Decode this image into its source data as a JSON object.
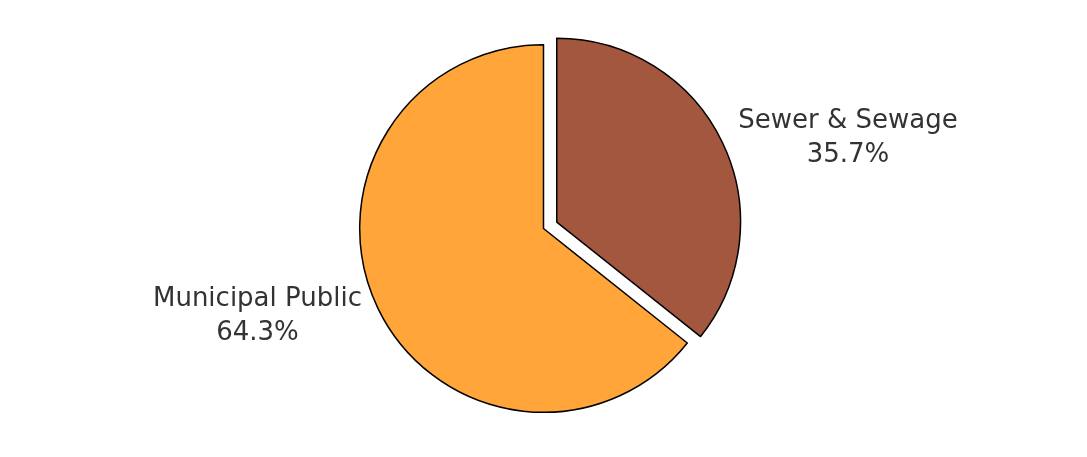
{
  "chart_data": {
    "type": "pie",
    "categories": [
      "Sewer & Sewage",
      "Municipal Public"
    ],
    "values": [
      35.7,
      64.3
    ],
    "value_labels": [
      "35.7%",
      "64.3%"
    ],
    "colors": [
      "#a3573f",
      "#ffa53a"
    ],
    "legend": false
  }
}
